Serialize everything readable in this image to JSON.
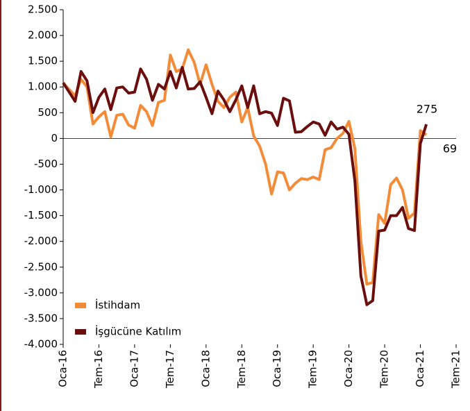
{
  "chart_data": {
    "type": "line",
    "categories": [
      "Oca-16",
      null,
      null,
      null,
      null,
      null,
      "Tem-16",
      null,
      null,
      null,
      null,
      null,
      "Oca-17",
      null,
      null,
      null,
      null,
      null,
      "Tem-17",
      null,
      null,
      null,
      null,
      null,
      "Oca-18",
      null,
      null,
      null,
      null,
      null,
      "Tem-18",
      null,
      null,
      null,
      null,
      null,
      "Oca-19",
      null,
      null,
      null,
      null,
      null,
      "Tem-19",
      null,
      null,
      null,
      null,
      null,
      "Oca-20",
      null,
      null,
      null,
      null,
      null,
      "Tem-20",
      null,
      null,
      null,
      null,
      null,
      "Oca-21",
      null,
      null,
      null,
      null,
      null,
      "Tem-21"
    ],
    "series": [
      {
        "name": "İstihdam",
        "color": "#f28c38",
        "values": [
          1080,
          950,
          830,
          1150,
          1000,
          280,
          420,
          520,
          30,
          450,
          470,
          260,
          200,
          640,
          520,
          250,
          700,
          740,
          1620,
          1300,
          1350,
          1720,
          1480,
          1050,
          1430,
          1050,
          720,
          600,
          800,
          900,
          320,
          600,
          50,
          -150,
          -500,
          -1080,
          -650,
          -670,
          -1000,
          -870,
          -780,
          -800,
          -750,
          -800,
          -220,
          -180,
          0,
          100,
          330,
          -200,
          -2000,
          -2830,
          -2800,
          -1480,
          -1650,
          -900,
          -770,
          -1000,
          -1550,
          -1450,
          150,
          69,
          null,
          null,
          null,
          null,
          null
        ]
      },
      {
        "name": "İşgücüne Katılım",
        "color": "#6b0e0e",
        "values": [
          1080,
          900,
          720,
          1300,
          1120,
          500,
          800,
          960,
          560,
          980,
          1000,
          880,
          900,
          1350,
          1150,
          740,
          1050,
          960,
          1300,
          980,
          1380,
          960,
          970,
          1100,
          800,
          480,
          920,
          750,
          520,
          750,
          1020,
          600,
          1020,
          480,
          520,
          490,
          250,
          780,
          730,
          120,
          130,
          230,
          320,
          280,
          60,
          320,
          180,
          220,
          80,
          -830,
          -2670,
          -3230,
          -3150,
          -1800,
          -1780,
          -1500,
          -1500,
          -1340,
          -1750,
          -1790,
          -100,
          275,
          null,
          null,
          null,
          null,
          null
        ]
      }
    ],
    "ylim": [
      -4000,
      2500
    ],
    "yticks": [
      {
        "value": -4000,
        "label": "-4.000"
      },
      {
        "value": -3500,
        "label": "-3.500"
      },
      {
        "value": -3000,
        "label": "-3.000"
      },
      {
        "value": -2500,
        "label": "-2.500"
      },
      {
        "value": -2000,
        "label": "-2.000"
      },
      {
        "value": -1500,
        "label": "-1.500"
      },
      {
        "value": -1000,
        "label": "-1.000"
      },
      {
        "value": -500,
        "label": "-500"
      },
      0,
      500,
      {
        "value": 1000,
        "label": "1.000"
      },
      {
        "value": 1500,
        "label": "1.500"
      },
      {
        "value": 2000,
        "label": "2.000"
      },
      {
        "value": 2500,
        "label": "2.500"
      }
    ],
    "annotations": [
      {
        "text": "275"
      },
      {
        "text": "69"
      }
    ],
    "legend": "lower left"
  }
}
